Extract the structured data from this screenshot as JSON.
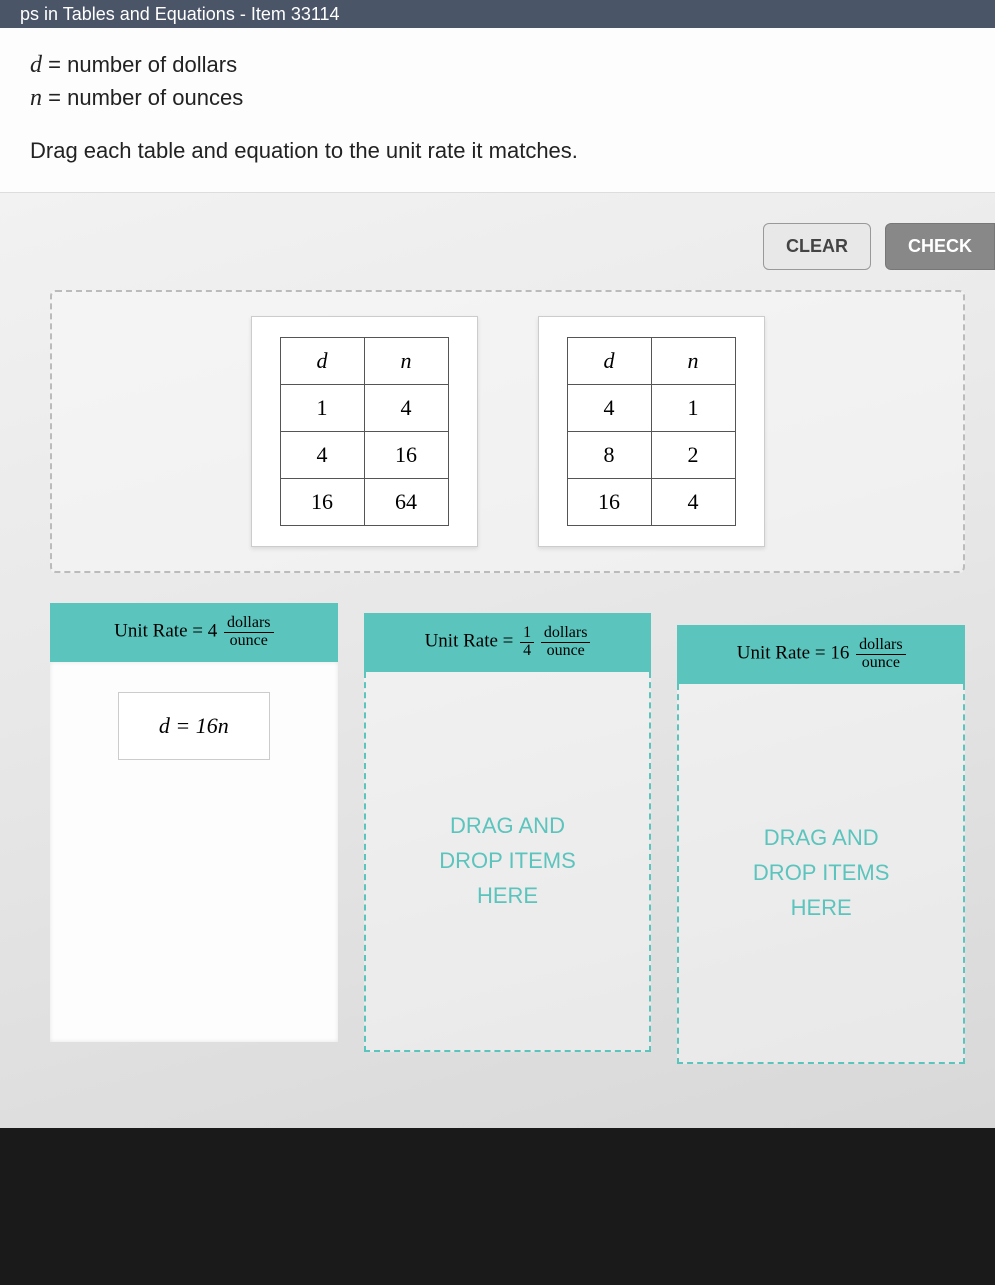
{
  "header": {
    "title": "ps in Tables and Equations - Item 33114"
  },
  "definitions": {
    "d_var": "d",
    "d_text": "number of dollars",
    "n_var": "n",
    "n_text": "number of ounces",
    "instruction": "Drag each table and equation to the unit rate it matches."
  },
  "buttons": {
    "clear": "CLEAR",
    "check": "CHECK"
  },
  "tables": {
    "t1": {
      "col1_header": "d",
      "col2_header": "n",
      "rows": [
        {
          "c1": "1",
          "c2": "4"
        },
        {
          "c1": "4",
          "c2": "16"
        },
        {
          "c1": "16",
          "c2": "64"
        }
      ]
    },
    "t2": {
      "col1_header": "d",
      "col2_header": "n",
      "rows": [
        {
          "c1": "4",
          "c2": "1"
        },
        {
          "c1": "8",
          "c2": "2"
        },
        {
          "c1": "16",
          "c2": "4"
        }
      ]
    }
  },
  "drop_zones": {
    "z1": {
      "label_prefix": "Unit Rate = ",
      "rate_value": "4",
      "rate_num": "dollars",
      "rate_den": "ounce",
      "has_item": true,
      "item_text": "d = 16n"
    },
    "z2": {
      "label_prefix": "Unit Rate = ",
      "rate_frac_num": "1",
      "rate_frac_den": "4",
      "rate_num": "dollars",
      "rate_den": "ounce",
      "has_item": false,
      "placeholder_l1": "DRAG AND",
      "placeholder_l2": "DROP ITEMS",
      "placeholder_l3": "HERE"
    },
    "z3": {
      "label_prefix": "Unit Rate = ",
      "rate_value": "16",
      "rate_num": "dollars",
      "rate_den": "ounce",
      "has_item": false,
      "placeholder_l1": "DRAG AND",
      "placeholder_l2": "DROP ITEMS",
      "placeholder_l3": "HERE"
    }
  },
  "styling": {
    "accent_color": "#5bc4bd",
    "header_bg": "#4a5568",
    "button_clear_bg": "#e8e8e8",
    "button_check_bg": "#888888",
    "card_bg": "#ffffff",
    "border_dash_color": "#bbbbbb",
    "table_border": "#555555",
    "font_family_math": "Times New Roman"
  }
}
